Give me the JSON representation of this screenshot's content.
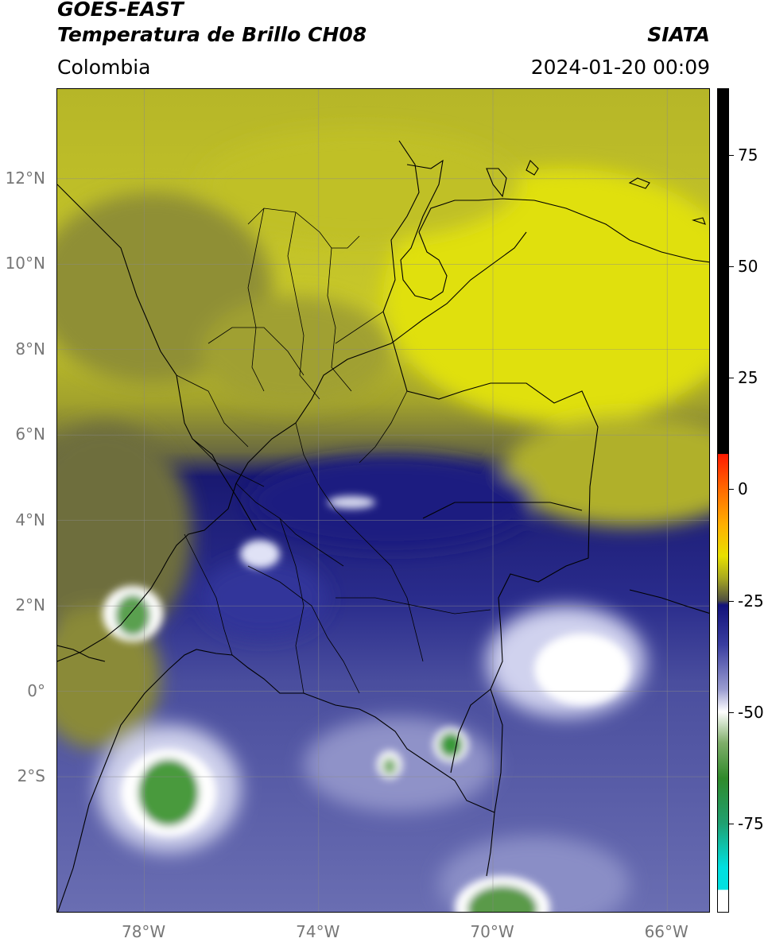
{
  "header": {
    "satellite": "GOES-EAST",
    "product": "Temperatura de Brillo CH08",
    "region": "Colombia",
    "source": "SIATA",
    "timestamp": "2024-01-20 00:09"
  },
  "map": {
    "lon_range": [
      -80,
      -65
    ],
    "lat_range": [
      -5.2,
      14.1
    ],
    "x_ticks": [
      {
        "lon": -78,
        "label": "78°W"
      },
      {
        "lon": -74,
        "label": "74°W"
      },
      {
        "lon": -70,
        "label": "70°W"
      },
      {
        "lon": -66,
        "label": "66°W"
      }
    ],
    "y_ticks": [
      {
        "lat": 12,
        "label": "12°N"
      },
      {
        "lat": 10,
        "label": "10°N"
      },
      {
        "lat": 8,
        "label": "8°N"
      },
      {
        "lat": 6,
        "label": "6°N"
      },
      {
        "lat": 4,
        "label": "4°N"
      },
      {
        "lat": 2,
        "label": "2°N"
      },
      {
        "lat": 0,
        "label": "0°"
      },
      {
        "lat": -2,
        "label": "2°S"
      }
    ],
    "grid": true
  },
  "colorbar": {
    "range": [
      -95,
      90
    ],
    "ticks": [
      {
        "value": 75,
        "label": "75"
      },
      {
        "value": 50,
        "label": "50"
      },
      {
        "value": 25,
        "label": "25"
      },
      {
        "value": 0,
        "label": "0"
      },
      {
        "value": -25,
        "label": "-25"
      },
      {
        "value": -50,
        "label": "-50"
      },
      {
        "value": -75,
        "label": "-75"
      }
    ],
    "stops": [
      {
        "value": 90,
        "color": "#000000"
      },
      {
        "value": 8,
        "color": "#000000"
      },
      {
        "value": 7.9,
        "color": "#ff1a00"
      },
      {
        "value": 0,
        "color": "#ff6a00"
      },
      {
        "value": -8,
        "color": "#ffb000"
      },
      {
        "value": -15,
        "color": "#e8e000"
      },
      {
        "value": -20,
        "color": "#a8a820"
      },
      {
        "value": -25,
        "color": "#505040"
      },
      {
        "value": -26,
        "color": "#12127a"
      },
      {
        "value": -35,
        "color": "#3a3ea0"
      },
      {
        "value": -45,
        "color": "#9a9cd0"
      },
      {
        "value": -50,
        "color": "#ffffff"
      },
      {
        "value": -57,
        "color": "#7fae6a"
      },
      {
        "value": -65,
        "color": "#2f8a2a"
      },
      {
        "value": -75,
        "color": "#20a070"
      },
      {
        "value": -85,
        "color": "#00e0e0"
      },
      {
        "value": -90,
        "color": "#00e0e0"
      },
      {
        "value": -90.1,
        "color": "#ffffff"
      },
      {
        "value": -95,
        "color": "#ffffff"
      }
    ]
  }
}
